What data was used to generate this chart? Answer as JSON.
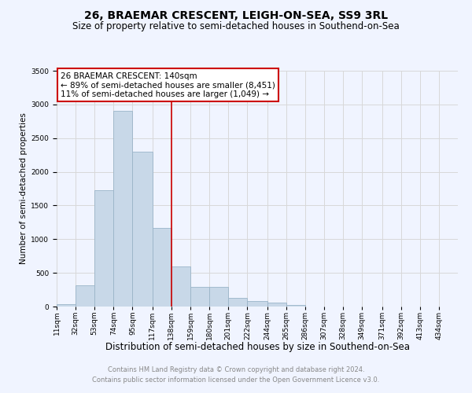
{
  "title": "26, BRAEMAR CRESCENT, LEIGH-ON-SEA, SS9 3RL",
  "subtitle": "Size of property relative to semi-detached houses in Southend-on-Sea",
  "xlabel": "Distribution of semi-detached houses by size in Southend-on-Sea",
  "ylabel": "Number of semi-detached properties",
  "footer1": "Contains HM Land Registry data © Crown copyright and database right 2024.",
  "footer2": "Contains public sector information licensed under the Open Government Licence v3.0.",
  "annotation_title": "26 BRAEMAR CRESCENT: 140sqm",
  "annotation_line1": "← 89% of semi-detached houses are smaller (8,451)",
  "annotation_line2": "11% of semi-detached houses are larger (1,049) →",
  "bar_labels": [
    "11sqm",
    "32sqm",
    "53sqm",
    "74sqm",
    "95sqm",
    "117sqm",
    "138sqm",
    "159sqm",
    "180sqm",
    "201sqm",
    "222sqm",
    "244sqm",
    "265sqm",
    "286sqm",
    "307sqm",
    "328sqm",
    "349sqm",
    "371sqm",
    "392sqm",
    "413sqm",
    "434sqm"
  ],
  "bar_values": [
    30,
    310,
    1730,
    2900,
    2300,
    1170,
    600,
    295,
    295,
    130,
    80,
    55,
    25,
    0,
    0,
    0,
    0,
    0,
    0,
    0,
    0
  ],
  "bar_edges": [
    11,
    32,
    53,
    74,
    95,
    117,
    138,
    159,
    180,
    201,
    222,
    244,
    265,
    286,
    307,
    328,
    349,
    371,
    392,
    413,
    434,
    455
  ],
  "bar_color": "#c8d8e8",
  "bar_edge_color": "#9ab4c8",
  "vline_color": "#cc0000",
  "ylim": [
    0,
    3500
  ],
  "yticks": [
    0,
    500,
    1000,
    1500,
    2000,
    2500,
    3000,
    3500
  ],
  "grid_color": "#d8d8d8",
  "bg_color": "#f0f4ff",
  "annotation_box_color": "#ffffff",
  "annotation_box_edge": "#cc0000",
  "title_fontsize": 10,
  "subtitle_fontsize": 8.5,
  "xlabel_fontsize": 8.5,
  "ylabel_fontsize": 7.5,
  "tick_fontsize": 6.5,
  "annotation_fontsize": 7.5,
  "footer_fontsize": 6
}
